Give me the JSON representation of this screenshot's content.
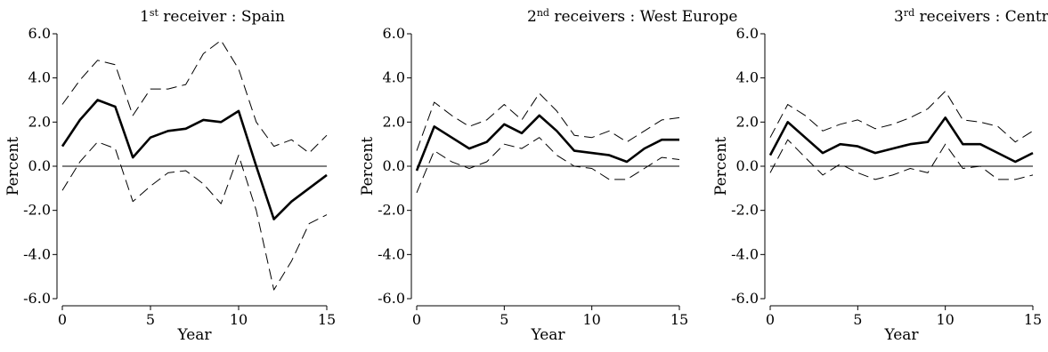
{
  "chart_data": [
    {
      "type": "line",
      "title": {
        "ordinal": "1",
        "suffix": "st",
        "rest": " receiver : Spain"
      },
      "xlabel": "Year",
      "ylabel": "Percent",
      "xlim": [
        0,
        15
      ],
      "ylim": [
        -6.0,
        6.0
      ],
      "xticks": [
        0,
        5,
        10,
        15
      ],
      "yticks": [
        -6.0,
        -4.0,
        -2.0,
        0.0,
        2.0,
        4.0,
        6.0
      ],
      "ytick_labels": [
        "-6.0",
        "-4.0",
        "-2.0",
        "0.0",
        "2.0",
        "4.0",
        "6.0"
      ],
      "zero_line": true,
      "grid": false,
      "x": [
        0,
        1,
        2,
        3,
        4,
        5,
        6,
        7,
        8,
        9,
        10,
        11,
        12,
        13,
        14,
        15
      ],
      "series": [
        {
          "role": "upper",
          "style": "dashed",
          "values": [
            2.8,
            3.9,
            4.8,
            4.6,
            2.3,
            3.5,
            3.5,
            3.7,
            5.1,
            5.7,
            4.4,
            2.0,
            0.9,
            1.2,
            0.6,
            1.4
          ]
        },
        {
          "role": "estimate",
          "style": "solid",
          "values": [
            0.9,
            2.1,
            3.0,
            2.7,
            0.4,
            1.3,
            1.6,
            1.7,
            2.1,
            2.0,
            2.5,
            0.0,
            -2.4,
            -1.6,
            -1.0,
            -0.4
          ]
        },
        {
          "role": "lower",
          "style": "dashed",
          "values": [
            -1.1,
            0.2,
            1.1,
            0.8,
            -1.6,
            -0.9,
            -0.3,
            -0.2,
            -0.8,
            -1.7,
            0.5,
            -2.0,
            -5.6,
            -4.3,
            -2.6,
            -2.2
          ]
        }
      ]
    },
    {
      "type": "line",
      "title": {
        "ordinal": "2",
        "suffix": "nd",
        "rest": " receivers : West Europe"
      },
      "xlabel": "Year",
      "ylabel": "Percent",
      "xlim": [
        0,
        15
      ],
      "ylim": [
        -6.0,
        6.0
      ],
      "xticks": [
        0,
        5,
        10,
        15
      ],
      "yticks": [
        -6.0,
        -4.0,
        -2.0,
        0.0,
        2.0,
        4.0,
        6.0
      ],
      "ytick_labels": [
        "-6.0",
        "-4.0",
        "-2.0",
        "0.0",
        "2.0",
        "4.0",
        "6.0"
      ],
      "zero_line": true,
      "grid": false,
      "x": [
        0,
        1,
        2,
        3,
        4,
        5,
        6,
        7,
        8,
        9,
        10,
        11,
        12,
        13,
        14,
        15
      ],
      "series": [
        {
          "role": "upper",
          "style": "dashed",
          "values": [
            0.7,
            2.9,
            2.3,
            1.8,
            2.1,
            2.8,
            2.1,
            3.3,
            2.5,
            1.4,
            1.3,
            1.6,
            1.1,
            1.6,
            2.1,
            2.2
          ]
        },
        {
          "role": "estimate",
          "style": "solid",
          "values": [
            -0.2,
            1.8,
            1.3,
            0.8,
            1.1,
            1.9,
            1.5,
            2.3,
            1.6,
            0.7,
            0.6,
            0.5,
            0.2,
            0.8,
            1.2,
            1.2
          ]
        },
        {
          "role": "lower",
          "style": "dashed",
          "values": [
            -1.2,
            0.7,
            0.2,
            -0.1,
            0.2,
            1.0,
            0.8,
            1.3,
            0.5,
            0.0,
            -0.1,
            -0.6,
            -0.6,
            -0.1,
            0.4,
            0.3
          ]
        }
      ]
    },
    {
      "type": "line",
      "title": {
        "ordinal": "3",
        "suffix": "rd",
        "rest": " receivers : Central Europe"
      },
      "xlabel": "Year",
      "ylabel": "Percent",
      "xlim": [
        0,
        15
      ],
      "ylim": [
        -6.0,
        6.0
      ],
      "xticks": [
        0,
        5,
        10,
        15
      ],
      "yticks": [
        -6.0,
        -4.0,
        -2.0,
        0.0,
        2.0,
        4.0,
        6.0
      ],
      "ytick_labels": [
        "-6.0",
        "-4.0",
        "-2.0",
        "0.0",
        "2.0",
        "4.0",
        "6.0"
      ],
      "zero_line": true,
      "grid": false,
      "x": [
        0,
        1,
        2,
        3,
        4,
        5,
        6,
        7,
        8,
        9,
        10,
        11,
        12,
        13,
        14,
        15
      ],
      "series": [
        {
          "role": "upper",
          "style": "dashed",
          "values": [
            1.3,
            2.8,
            2.3,
            1.6,
            1.9,
            2.1,
            1.7,
            1.9,
            2.2,
            2.6,
            3.4,
            2.1,
            2.0,
            1.8,
            1.1,
            1.6
          ]
        },
        {
          "role": "estimate",
          "style": "solid",
          "values": [
            0.5,
            2.0,
            1.3,
            0.6,
            1.0,
            0.9,
            0.6,
            0.8,
            1.0,
            1.1,
            2.2,
            1.0,
            1.0,
            0.6,
            0.2,
            0.6
          ]
        },
        {
          "role": "lower",
          "style": "dashed",
          "values": [
            -0.3,
            1.2,
            0.4,
            -0.4,
            0.1,
            -0.3,
            -0.6,
            -0.4,
            -0.1,
            -0.3,
            1.0,
            -0.1,
            0.0,
            -0.6,
            -0.6,
            -0.4
          ]
        }
      ]
    }
  ]
}
